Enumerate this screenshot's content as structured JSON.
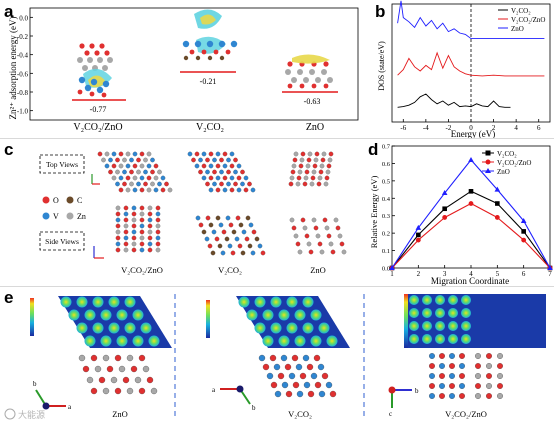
{
  "panels": {
    "a": {
      "letter": "a",
      "ylabel": "Zn²⁺ adsorption energy (eV)",
      "yticks": [
        "0.0",
        "-0.2",
        "-0.4",
        "-0.6",
        "-0.8",
        "-1.0"
      ],
      "labels": [
        "-0.77",
        "-0.21",
        "-0.63"
      ],
      "xlabels": [
        "V₂CO₂/ZnO",
        "V₂CO₂",
        "ZnO"
      ]
    },
    "b": {
      "letter": "b",
      "ylabel": "DOS (state/eV)",
      "xlabel": "Energy (eV)",
      "xticks": [
        "-6",
        "-4",
        "-2",
        "0",
        "2",
        "4",
        "6"
      ],
      "legend": [
        "V₂CO₂",
        "V₂CO₂/ZnO",
        "ZnO"
      ]
    },
    "c": {
      "letter": "c",
      "top_views": "Top Views",
      "side_views": "Side Views",
      "atom_legend": [
        "O",
        "C",
        "V",
        "Zn"
      ],
      "labels": [
        "V₂CO₂/ZnO",
        "V₂CO₂",
        "ZnO"
      ]
    },
    "d": {
      "letter": "d",
      "ylabel": "Relative Energy (eV)",
      "xlabel": "Migration Coordinate",
      "xticks": [
        "1",
        "2",
        "3",
        "4",
        "5",
        "6",
        "7"
      ],
      "yticks": [
        "0.0",
        "0.1",
        "0.2",
        "0.3",
        "0.4",
        "0.5",
        "0.6",
        "0.7"
      ],
      "legend": [
        "V₂CO₂",
        "V₂CO₂/ZnO",
        "ZnO"
      ]
    },
    "e": {
      "letter": "e",
      "labels": [
        "ZnO",
        "V₂CO₂",
        "V₂CO₂/ZnO"
      ],
      "axes": [
        {
          "up": "b",
          "side": "a"
        },
        {
          "up": "b",
          "side": "a"
        },
        {
          "up": "c",
          "side": "b"
        }
      ]
    }
  },
  "watermark": "大能源",
  "colors": {
    "black": "#000000",
    "red": "#e41a1c",
    "blue": "#1f1fff",
    "cyan_iso": "#5fd3e0",
    "yellow_iso": "#e8d84a",
    "v_atom": "#2f86d1",
    "o_atom": "#e03030",
    "c_atom": "#6b4b2a",
    "zn_atom": "#a8a8a8"
  },
  "chart_data": [
    {
      "type": "bar",
      "title": "",
      "ylabel": "Zn²⁺ adsorption energy (eV)",
      "categories": [
        "V₂CO₂/ZnO",
        "V₂CO₂",
        "ZnO"
      ],
      "values": [
        -0.77,
        -0.21,
        -0.63
      ],
      "ylim": [
        -1.1,
        0.1
      ]
    },
    {
      "type": "line",
      "xlabel": "Energy (eV)",
      "ylabel": "DOS (state/eV)",
      "xlim": [
        -7,
        7
      ],
      "series": [
        {
          "name": "V₂CO₂",
          "color": "#000000",
          "x": [
            -6.5,
            -6,
            -5.5,
            -5,
            -4.5,
            -4,
            -3.5,
            -3,
            -2.5,
            -2,
            -1.5,
            -1,
            -0.5,
            0,
            0.5,
            1,
            1.5,
            2,
            2.5,
            3,
            3.5
          ],
          "y": [
            0.05,
            0.1,
            0.2,
            0.4,
            0.8,
            1.0,
            0.6,
            0.3,
            0.5,
            0.2,
            0.4,
            0.1,
            0.15,
            0.1,
            0.3,
            0.15,
            0.1,
            0.5,
            0.1,
            0.05,
            0.05
          ]
        },
        {
          "name": "V₂CO₂/ZnO",
          "color": "#e41a1c",
          "x": [
            -6.5,
            -6,
            -5.5,
            -5,
            -4.5,
            -4,
            -3.5,
            -3,
            -2.5,
            -2,
            -1.5,
            -1,
            -0.5,
            0,
            1,
            2,
            3,
            4,
            5,
            6,
            6.5
          ],
          "y": [
            0.2,
            0.6,
            1.4,
            0.8,
            0.5,
            0.9,
            0.6,
            1.8,
            0.7,
            1.6,
            0.8,
            0.5,
            0.3,
            0.2,
            0.15,
            0.2,
            0.15,
            0.15,
            0.15,
            0.15,
            0.15
          ]
        },
        {
          "name": "ZnO",
          "color": "#1f1fff",
          "x": [
            -6.5,
            -6.2,
            -6,
            -5.5,
            -5,
            -4.5,
            -4,
            -3.5,
            -3,
            -2.5,
            -2,
            -1.5,
            -1,
            -0.5,
            0,
            1,
            2,
            3,
            4,
            5,
            6,
            6.5
          ],
          "y": [
            1.2,
            2.8,
            1.6,
            1.3,
            0.9,
            1.6,
            1.0,
            1.4,
            0.8,
            1.2,
            0.6,
            0.8,
            0.5,
            0.4,
            0.1,
            0.1,
            0.1,
            0.1,
            0.1,
            0.1,
            0.1,
            0.1
          ]
        }
      ]
    },
    {
      "type": "line",
      "xlabel": "Migration Coordinate",
      "ylabel": "Relative Energy (eV)",
      "xlim": [
        1,
        7
      ],
      "ylim": [
        0,
        0.7
      ],
      "series": [
        {
          "name": "V₂CO₂",
          "color": "#000000",
          "x": [
            1,
            2,
            3,
            4,
            5,
            6,
            7
          ],
          "y": [
            0.0,
            0.19,
            0.34,
            0.44,
            0.37,
            0.21,
            0.0
          ]
        },
        {
          "name": "V₂CO₂/ZnO",
          "color": "#e41a1c",
          "x": [
            1,
            2,
            3,
            4,
            5,
            6,
            7
          ],
          "y": [
            0.0,
            0.16,
            0.29,
            0.37,
            0.29,
            0.16,
            0.0
          ]
        },
        {
          "name": "ZnO",
          "color": "#1f1fff",
          "x": [
            1,
            2,
            3,
            4,
            5,
            6,
            7
          ],
          "y": [
            0.0,
            0.23,
            0.43,
            0.62,
            0.45,
            0.27,
            0.0
          ]
        }
      ]
    }
  ]
}
